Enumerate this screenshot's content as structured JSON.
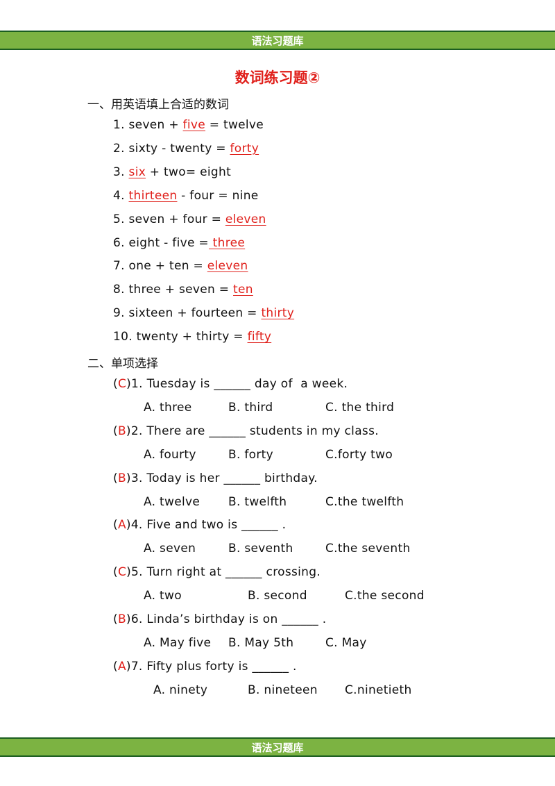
{
  "header_banner": "语法习题库",
  "footer_banner": "语法习题库",
  "title": "数词练习题②",
  "section1": {
    "heading": "一、用英语填上合适的数词",
    "items": [
      {
        "pre": "1. seven + ",
        "ans": "five",
        "post": " = twelve"
      },
      {
        "pre": "2. sixty - twenty = ",
        "ans": "forty",
        "post": ""
      },
      {
        "pre": "3. ",
        "ans": "six",
        "post": " + two= eight"
      },
      {
        "pre": "4. ",
        "ans": "thirteen",
        "post": " - four = nine"
      },
      {
        "pre": "5. seven + four = ",
        "ans": "eleven",
        "post": ""
      },
      {
        "pre": "6. eight - five =",
        "ans": " three",
        "post": ""
      },
      {
        "pre": "7. one + ten = ",
        "ans": "eleven",
        "post": ""
      },
      {
        "pre": "8. three + seven = ",
        "ans": "ten",
        "post": ""
      },
      {
        "pre": "9. sixteen + fourteen = ",
        "ans": "thirty",
        "post": ""
      },
      {
        "pre": "10. twenty + thirty = ",
        "ans": "fifty",
        "post": ""
      }
    ]
  },
  "section2": {
    "heading": "二、单项选择",
    "questions": [
      {
        "key": "C",
        "text": "1. Tuesday is ______ day of  a week.",
        "a": "A. three",
        "b": "B. third",
        "c": "C. the third"
      },
      {
        "key": "B",
        "text": "2. There are ______ students in my class.",
        "a": "A. fourty",
        "b": "B. forty",
        "c": "C.forty two"
      },
      {
        "key": "B",
        "text": "3. Today is her ______ birthday.",
        "a": "A. twelve",
        "b": "B. twelfth",
        "c": "C.the twelfth"
      },
      {
        "key": "A",
        "text": "4. Five and two is ______ .",
        "a": "A. seven",
        "b": "B. seventh",
        "c": "C.the seventh"
      },
      {
        "key": "C",
        "text": "5. Turn right at ______ crossing.",
        "a": "A. two",
        "b": "B. second",
        "c": "C.the second"
      },
      {
        "key": "B",
        "text": "6. Linda’s birthday is on ______ .",
        "a": "A. May five",
        "b": "B. May 5th",
        "c": "C. May"
      },
      {
        "key": "A",
        "text": "7. Fifty plus forty is ______ .",
        "a": "A. ninety",
        "b": "B. nineteen",
        "c": "C.ninetieth"
      }
    ]
  }
}
